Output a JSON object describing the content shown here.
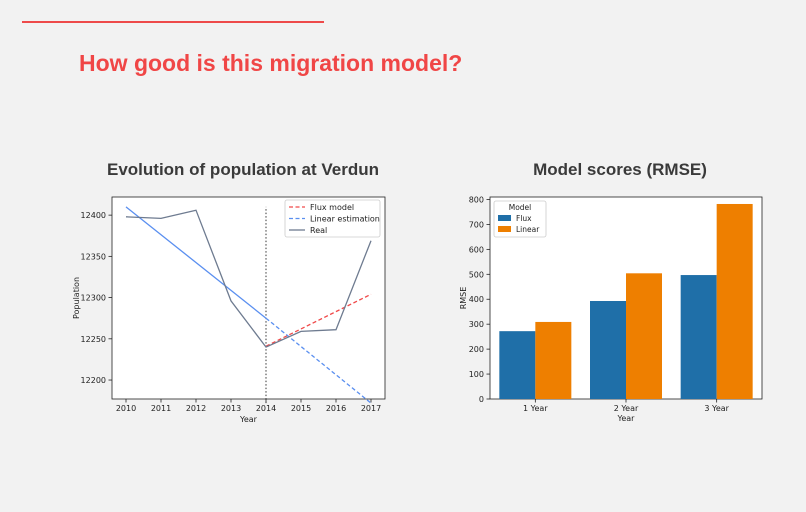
{
  "slide": {
    "title": "How good is this migration model?",
    "accent_color": "#f04646"
  },
  "chart_data": [
    {
      "type": "line",
      "title": "Evolution of population at Verdun",
      "xlabel": "Year",
      "ylabel": "Population",
      "xlim": [
        2009.6,
        2017.4
      ],
      "ylim": [
        12177,
        12422
      ],
      "xticks": [
        2010,
        2011,
        2012,
        2013,
        2014,
        2015,
        2016,
        2017
      ],
      "yticks": [
        12200,
        12250,
        12300,
        12350,
        12400
      ],
      "grid": false,
      "legend_position": "top-right",
      "vline": {
        "x": 2014,
        "y_range": [
          12172,
          12410
        ],
        "style": "dotted"
      },
      "series": [
        {
          "name": "Flux model",
          "style": "dashed",
          "color": "#f04a4a",
          "x": [
            2014,
            2017
          ],
          "y": [
            12241,
            12304
          ]
        },
        {
          "name": "Linear estimation",
          "style": "dashed",
          "color": "#5a8ff0",
          "x": [
            2014,
            2017
          ],
          "y": [
            12275,
            12172
          ]
        },
        {
          "name": "Real",
          "style": "solid",
          "color": "#6e7b90",
          "x": [
            2010,
            2011,
            2012,
            2013,
            2014,
            2015,
            2016,
            2017
          ],
          "y": [
            12398,
            12396,
            12406,
            12296,
            12240,
            12259,
            12261,
            12369
          ]
        }
      ],
      "extra_lines": [
        {
          "style": "solid",
          "color": "#5a8ff0",
          "x": [
            2010,
            2014
          ],
          "y": [
            12410,
            12275
          ]
        }
      ]
    },
    {
      "type": "bar",
      "title": "Model scores (RMSE)",
      "xlabel": "Year",
      "ylabel": "RMSE",
      "categories": [
        "1 Year",
        "2 Year",
        "3 Year"
      ],
      "ylim": [
        0,
        810
      ],
      "yticks": [
        0,
        100,
        200,
        300,
        400,
        500,
        600,
        700,
        800
      ],
      "grid": false,
      "legend_title": "Model",
      "legend_position": "top-left",
      "series": [
        {
          "name": "Flux",
          "color": "#1f6fa8",
          "values": [
            272,
            393,
            497
          ]
        },
        {
          "name": "Linear",
          "color": "#ee7f00",
          "values": [
            309,
            504,
            782
          ]
        }
      ]
    }
  ]
}
